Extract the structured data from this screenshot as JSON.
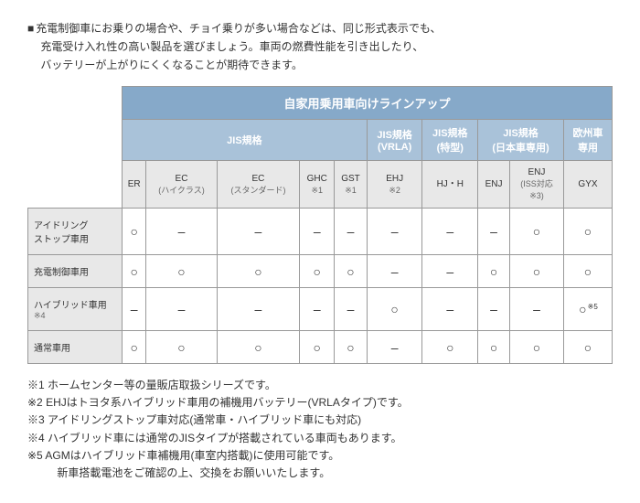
{
  "intro": {
    "lines": [
      "充電制御車にお乗りの場合や、チョイ乗りが多い場合などは、同じ形式表示でも、",
      "充電受け入れ性の高い製品を選びましょう。車両の燃費性能を引き出したり、",
      "バッテリーが上がりにくくなることが期待できます。"
    ]
  },
  "table": {
    "title": "自家用乗用車向けラインアップ",
    "groups": [
      {
        "label": "JIS規格",
        "span": 5
      },
      {
        "label": "JIS規格\n(VRLA)",
        "span": 1
      },
      {
        "label": "JIS規格\n(特型)",
        "span": 1
      },
      {
        "label": "JIS規格\n(日本車専用)",
        "span": 2
      },
      {
        "label": "欧州車\n専用",
        "span": 1
      }
    ],
    "columns": [
      {
        "label": "ER"
      },
      {
        "label": "EC",
        "sub": "(ハイクラス)"
      },
      {
        "label": "EC",
        "sub": "(スタンダード)"
      },
      {
        "label": "GHC",
        "sub": "※1"
      },
      {
        "label": "GST",
        "sub": "※1"
      },
      {
        "label": "EHJ",
        "sub": "※2"
      },
      {
        "label": "HJ・H"
      },
      {
        "label": "ENJ"
      },
      {
        "label": "ENJ",
        "sub": "(ISS対応\n※3)"
      },
      {
        "label": "GYX"
      }
    ],
    "rows": [
      {
        "head": "アイドリング\nストップ車用",
        "cells": [
          "○",
          "–",
          "–",
          "–",
          "–",
          "–",
          "–",
          "–",
          "○",
          "○"
        ]
      },
      {
        "head": "充電制御車用",
        "cells": [
          "○",
          "○",
          "○",
          "○",
          "○",
          "–",
          "–",
          "○",
          "○",
          "○"
        ]
      },
      {
        "head": "ハイブリッド車用",
        "headnote": "※4",
        "cells": [
          "–",
          "–",
          "–",
          "–",
          "–",
          "○",
          "–",
          "–",
          "–",
          "○"
        ],
        "cellnotes": {
          "9": "※5"
        }
      },
      {
        "head": "通常車用",
        "cells": [
          "○",
          "○",
          "○",
          "○",
          "○",
          "–",
          "○",
          "○",
          "○",
          "○"
        ]
      }
    ]
  },
  "notes": [
    "※1 ホームセンター等の量販店取扱シリーズです。",
    "※2 EHJはトヨタ系ハイブリッド車用の補機用バッテリー(VRLAタイプ)です。",
    "※3 アイドリングストップ車対応(通常車・ハイブリッド車にも対応)",
    "※4 ハイブリッド車には通常のJISタイプが搭載されている車両もあります。",
    "※5 AGMはハイブリッド車補機用(車室内搭載)に使用可能です。"
  ],
  "notes_tail": "新車搭載電池をご確認の上、交換をお願いいたします。"
}
